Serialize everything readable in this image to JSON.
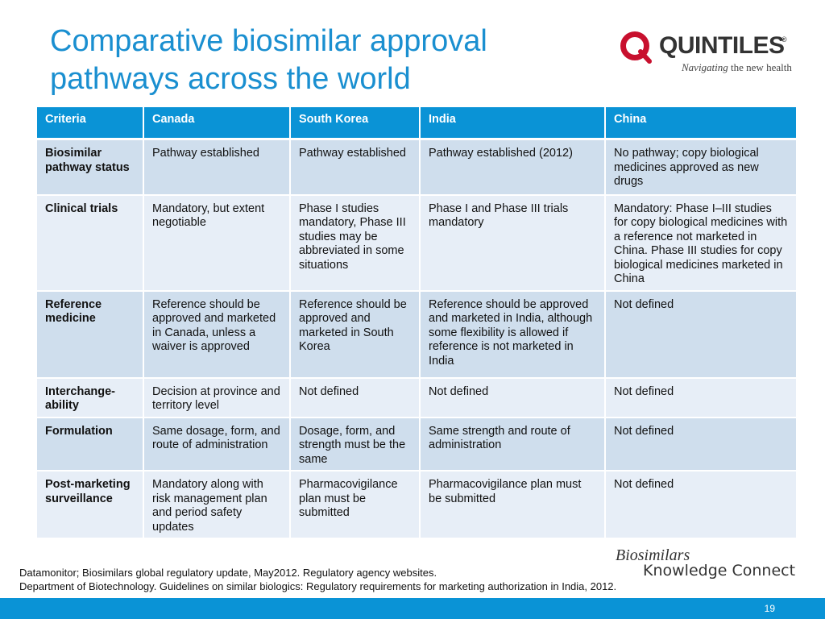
{
  "slide": {
    "title": "Comparative biosimilar approval pathways across the world",
    "page_number": "19"
  },
  "logo": {
    "brand": "QUINTILES",
    "registered": "®",
    "tagline_italic": "Navigating",
    "tagline_rest": " the new health",
    "accent_color": "#c8102e"
  },
  "table": {
    "headers": [
      "Criteria",
      "Canada",
      "South Korea",
      "India",
      "China"
    ],
    "rows": [
      [
        "Biosimilar pathway status",
        "Pathway established",
        "Pathway established",
        "Pathway established (2012)",
        "No pathway; copy biological medicines approved as new drugs"
      ],
      [
        "Clinical trials",
        "Mandatory, but extent negotiable",
        "Phase I studies mandatory, Phase III studies may be abbreviated in some situations",
        "Phase I and Phase III trials mandatory",
        "Mandatory: Phase I–III studies for copy biological medicines with a reference not marketed in China. Phase III studies for copy biological medicines marketed in China"
      ],
      [
        "Reference medicine",
        "Reference should be approved and marketed  in Canada, unless a waiver is approved",
        "Reference should be approved and marketed in South Korea",
        "Reference should be approved and marketed in India, although some flexibility is allowed if reference is not marketed in India",
        "Not defined"
      ],
      [
        "Interchange-ability",
        "Decision at province and territory level",
        "Not defined",
        "Not defined",
        "Not defined"
      ],
      [
        "Formulation",
        "Same dosage, form, and route of administration",
        "Dosage, form, and strength must be the same",
        "Same strength and route of administration",
        "Not defined"
      ],
      [
        "Post-marketing surveillance",
        "Mandatory along with risk management plan and period safety updates",
        "Pharmacovigilance plan must be submitted",
        "Pharmacovigilance plan must be submitted",
        "Not defined"
      ]
    ]
  },
  "branding": {
    "line1": "Biosimilars",
    "line2": "Knowledge Connect"
  },
  "sources": [
    "Datamonitor; Biosimilars global regulatory update, May2012. Regulatory agency websites.",
    "Department of Biotechnology. Guidelines on similar biologics: Regulatory requirements for marketing authorization in India, 2012."
  ],
  "colors": {
    "title": "#1a8fd0",
    "header_fill": "#0a93d6",
    "row_dark": "#cfdeed",
    "row_light": "#e7eef7"
  }
}
